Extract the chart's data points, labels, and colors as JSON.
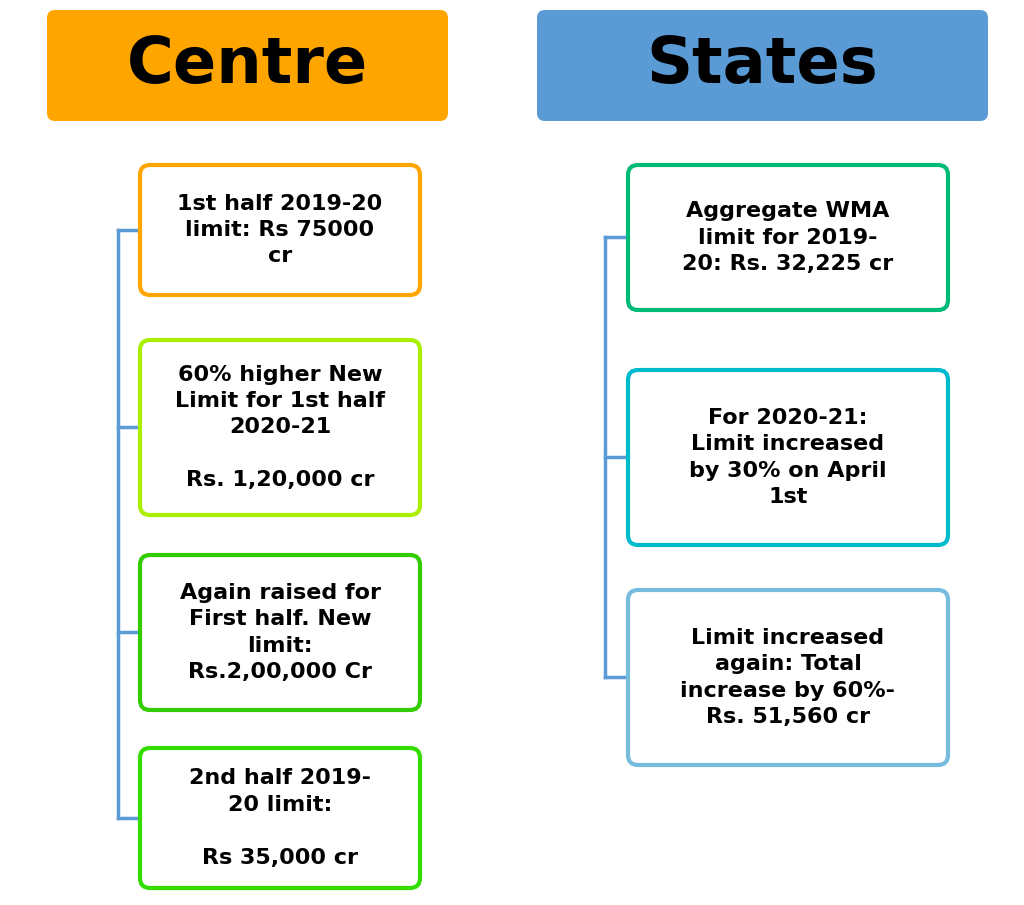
{
  "background_color": "#ffffff",
  "left_header": "Centre",
  "right_header": "States",
  "left_header_bg": "#FFA500",
  "right_header_bg": "#5B9BD5",
  "header_text_color": "#000000",
  "left_boxes": [
    {
      "text": "1st half 2019-20\nlimit: Rs 75000\ncr",
      "border_color": "#FFA500",
      "bg_color": "#ffffff"
    },
    {
      "text": "60% higher New\nLimit for 1st half\n2020-21\n\nRs. 1,20,000 cr",
      "border_color": "#AAEE00",
      "bg_color": "#ffffff"
    },
    {
      "text": "Again raised for\nFirst half. New\nlimit:\nRs.2,00,000 Cr",
      "border_color": "#33CC00",
      "bg_color": "#ffffff"
    },
    {
      "text": "2nd half 2019-\n20 limit:\n\nRs 35,000 cr",
      "border_color": "#33DD00",
      "bg_color": "#ffffff"
    }
  ],
  "right_boxes": [
    {
      "text": "Aggregate WMA\nlimit for 2019-\n20: Rs. 32,225 cr",
      "border_color": "#00BB77",
      "bg_color": "#ffffff"
    },
    {
      "text": "For 2020-21:\nLimit increased\nby 30% on April\n1st",
      "border_color": "#00BBCC",
      "bg_color": "#ffffff"
    },
    {
      "text": "Limit increased\nagain: Total\nincrease by 60%-\nRs. 51,560 cr",
      "border_color": "#77BBDD",
      "bg_color": "#ffffff"
    }
  ],
  "line_color": "#5B9BD5",
  "font_size_header": 46,
  "font_size_box": 16
}
